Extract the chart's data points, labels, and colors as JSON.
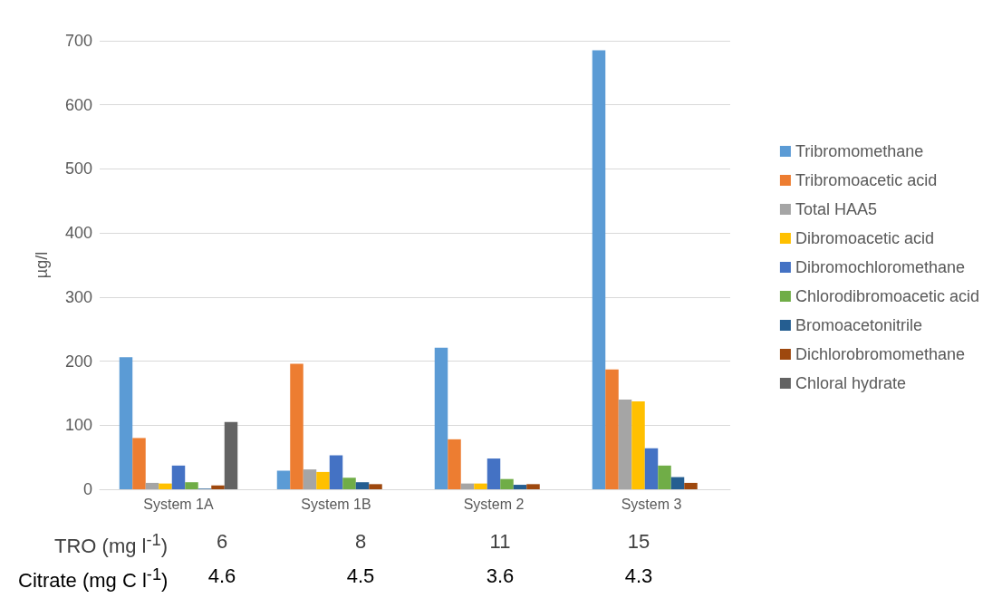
{
  "chart_data": {
    "type": "bar",
    "ylabel": "µg/l",
    "categories": [
      "System 1A",
      "System 1B",
      "System 2",
      "System 3"
    ],
    "series": [
      {
        "name": "Tribromomethane",
        "color": "#5b9bd5",
        "values": [
          206,
          29,
          221,
          685
        ]
      },
      {
        "name": "Tribromoacetic acid",
        "color": "#ed7d31",
        "values": [
          80,
          196,
          78,
          187
        ]
      },
      {
        "name": "Total HAA5",
        "color": "#a5a5a5",
        "values": [
          10,
          31,
          9,
          140
        ]
      },
      {
        "name": "Dibromoacetic acid",
        "color": "#ffc000",
        "values": [
          9,
          27,
          9,
          137
        ]
      },
      {
        "name": "Dibromochloromethane",
        "color": "#4472c4",
        "values": [
          37,
          53,
          48,
          64
        ]
      },
      {
        "name": "Chlorodibromoacetic acid",
        "color": "#70ad47",
        "values": [
          11,
          18,
          16,
          37
        ]
      },
      {
        "name": "Bromoacetonitrile",
        "color": "#255e91",
        "values": [
          1,
          11,
          7,
          19
        ]
      },
      {
        "name": "Dichlorobromomethane",
        "color": "#9e480e",
        "values": [
          6,
          8,
          8,
          10
        ]
      },
      {
        "name": "Chloral hydrate",
        "color": "#636363",
        "values": [
          105,
          0,
          0,
          0
        ]
      }
    ],
    "ylim": [
      0,
      700
    ],
    "yticks": [
      0,
      100,
      200,
      300,
      400,
      500,
      600,
      700
    ],
    "grid": "y",
    "legend": "right",
    "annotations": [
      "TRO (mg l$^{-1}$)",
      "6",
      "8",
      "11",
      "15",
      "Citrate (mg C l$^{-1}$)",
      "4.6",
      "4.5",
      "3.6",
      "4.3"
    ]
  }
}
